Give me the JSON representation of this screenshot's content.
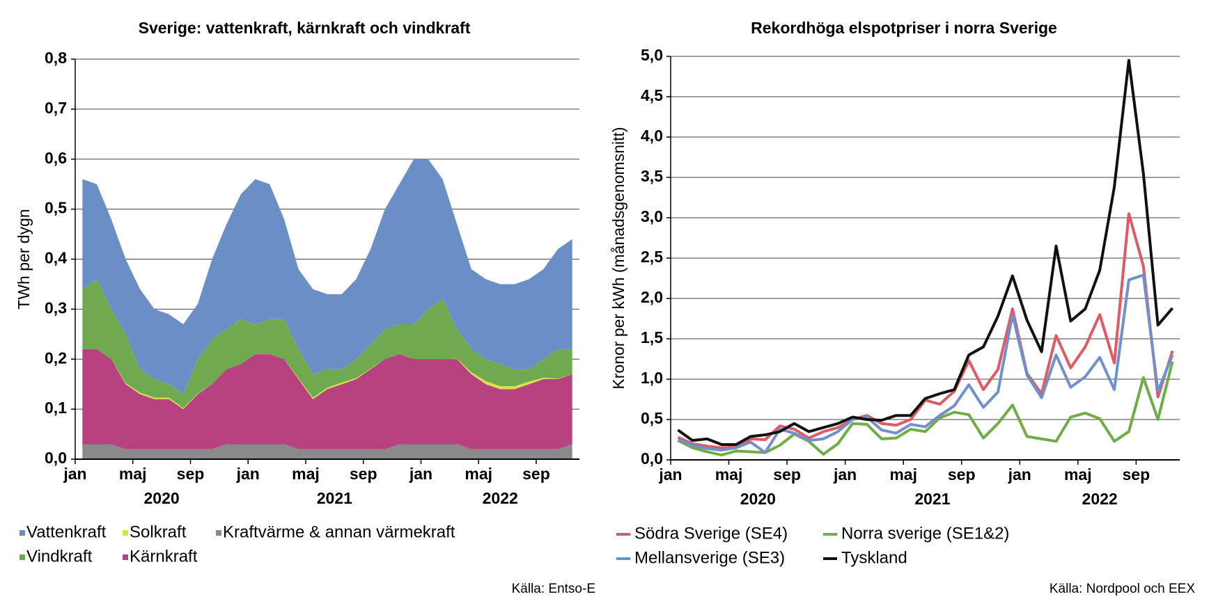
{
  "chart_data": [
    {
      "type": "area",
      "stacked": true,
      "title": "Sverige: vattenkraft, kärnkraft och vindkraft",
      "ylabel": "TWh per dygn",
      "source": "Källa: Entso-E",
      "x": [
        "2020-01",
        "2020-02",
        "2020-03",
        "2020-04",
        "2020-05",
        "2020-06",
        "2020-07",
        "2020-08",
        "2020-09",
        "2020-10",
        "2020-11",
        "2020-12",
        "2021-01",
        "2021-02",
        "2021-03",
        "2021-04",
        "2021-05",
        "2021-06",
        "2021-07",
        "2021-08",
        "2021-09",
        "2021-10",
        "2021-11",
        "2021-12",
        "2022-01",
        "2022-02",
        "2022-03",
        "2022-04",
        "2022-05",
        "2022-06",
        "2022-07",
        "2022-08",
        "2022-09",
        "2022-10",
        "2022-11"
      ],
      "series": [
        {
          "name": "Kraftvärme & annan värmekraft",
          "color": "#8a8a8a",
          "values": [
            0.03,
            0.03,
            0.03,
            0.02,
            0.02,
            0.02,
            0.02,
            0.02,
            0.02,
            0.02,
            0.03,
            0.03,
            0.03,
            0.03,
            0.03,
            0.02,
            0.02,
            0.02,
            0.02,
            0.02,
            0.02,
            0.02,
            0.03,
            0.03,
            0.03,
            0.03,
            0.03,
            0.02,
            0.02,
            0.02,
            0.02,
            0.02,
            0.02,
            0.02,
            0.03
          ]
        },
        {
          "name": "Kärnkraft",
          "color": "#b8417f",
          "values": [
            0.19,
            0.19,
            0.17,
            0.13,
            0.11,
            0.1,
            0.1,
            0.08,
            0.11,
            0.13,
            0.15,
            0.16,
            0.18,
            0.18,
            0.17,
            0.14,
            0.1,
            0.12,
            0.13,
            0.14,
            0.16,
            0.18,
            0.18,
            0.17,
            0.17,
            0.17,
            0.17,
            0.15,
            0.13,
            0.12,
            0.12,
            0.13,
            0.14,
            0.14,
            0.14
          ]
        },
        {
          "name": "Solkraft",
          "color": "#d8e24a",
          "values": [
            0,
            0,
            0,
            0.002,
            0.003,
            0.003,
            0.003,
            0.002,
            0.001,
            0,
            0,
            0,
            0,
            0,
            0,
            0.002,
            0.003,
            0.003,
            0.003,
            0.002,
            0.001,
            0,
            0,
            0,
            0,
            0,
            0.001,
            0.004,
            0.006,
            0.006,
            0.006,
            0.005,
            0.003,
            0.001,
            0
          ]
        },
        {
          "name": "Vindkraft",
          "color": "#70a94f",
          "values": [
            0.12,
            0.14,
            0.1,
            0.098,
            0.047,
            0.037,
            0.027,
            0.028,
            0.069,
            0.09,
            0.08,
            0.09,
            0.06,
            0.07,
            0.08,
            0.058,
            0.047,
            0.037,
            0.027,
            0.038,
            0.049,
            0.06,
            0.06,
            0.07,
            0.1,
            0.12,
            0.059,
            0.046,
            0.044,
            0.044,
            0.034,
            0.025,
            0.037,
            0.059,
            0.05
          ]
        },
        {
          "name": "Vattenkraft",
          "color": "#6a8fc7",
          "values": [
            0.22,
            0.19,
            0.18,
            0.15,
            0.16,
            0.14,
            0.14,
            0.14,
            0.11,
            0.16,
            0.21,
            0.25,
            0.29,
            0.27,
            0.2,
            0.16,
            0.17,
            0.15,
            0.15,
            0.16,
            0.19,
            0.24,
            0.28,
            0.33,
            0.3,
            0.24,
            0.21,
            0.16,
            0.16,
            0.16,
            0.17,
            0.18,
            0.18,
            0.2,
            0.22
          ]
        }
      ],
      "ylim": [
        0,
        0.8
      ],
      "yticks": [
        {
          "value": 0,
          "label": "0,0"
        },
        {
          "value": 0.1,
          "label": "0,1"
        },
        {
          "value": 0.2,
          "label": "0,2"
        },
        {
          "value": 0.3,
          "label": "0,3"
        },
        {
          "value": 0.4,
          "label": "0,4"
        },
        {
          "value": 0.5,
          "label": "0,5"
        },
        {
          "value": 0.6,
          "label": "0,6"
        },
        {
          "value": 0.7,
          "label": "0,7"
        },
        {
          "value": 0.8,
          "label": "0,8"
        }
      ],
      "xticks": [
        {
          "value": "2020-01",
          "label": "jan"
        },
        {
          "value": "2020-05",
          "label": "maj"
        },
        {
          "value": "2020-09",
          "label": "sep"
        },
        {
          "value": "2021-01",
          "label": "jan"
        },
        {
          "value": "2021-05",
          "label": "maj"
        },
        {
          "value": "2021-09",
          "label": "sep"
        },
        {
          "value": "2022-01",
          "label": "jan"
        },
        {
          "value": "2022-05",
          "label": "maj"
        },
        {
          "value": "2022-09",
          "label": "sep"
        }
      ],
      "year_labels": [
        "2020",
        "2021",
        "2022"
      ],
      "grid": true
    },
    {
      "type": "line",
      "title": "Rekordhöga elspotpriser i norra Sverige",
      "ylabel": "Kronor per kWh (månadsgenomsnitt)",
      "source": "Källa: Nordpool och EEX",
      "x": [
        "2020-01",
        "2020-02",
        "2020-03",
        "2020-04",
        "2020-05",
        "2020-06",
        "2020-07",
        "2020-08",
        "2020-09",
        "2020-10",
        "2020-11",
        "2020-12",
        "2021-01",
        "2021-02",
        "2021-03",
        "2021-04",
        "2021-05",
        "2021-06",
        "2021-07",
        "2021-08",
        "2021-09",
        "2021-10",
        "2021-11",
        "2021-12",
        "2022-01",
        "2022-02",
        "2022-03",
        "2022-04",
        "2022-05",
        "2022-06",
        "2022-07",
        "2022-08",
        "2022-09",
        "2022-10",
        "2022-11"
      ],
      "series": [
        {
          "name": "Södra Sverige (SE4)",
          "color": "#e05a66",
          "values": [
            0.28,
            0.2,
            0.17,
            0.15,
            0.16,
            0.26,
            0.25,
            0.42,
            0.38,
            0.27,
            0.35,
            0.4,
            0.5,
            0.55,
            0.45,
            0.43,
            0.5,
            0.74,
            0.69,
            0.85,
            1.23,
            0.87,
            1.12,
            1.87,
            1.07,
            0.82,
            1.54,
            1.14,
            1.4,
            1.8,
            1.2,
            3.05,
            2.4,
            0.78,
            1.35
          ]
        },
        {
          "name": "Norra sverige (SE1&2)",
          "color": "#70ad47",
          "values": [
            0.24,
            0.15,
            0.1,
            0.06,
            0.11,
            0.1,
            0.09,
            0.18,
            0.32,
            0.23,
            0.07,
            0.2,
            0.45,
            0.44,
            0.26,
            0.27,
            0.38,
            0.35,
            0.52,
            0.59,
            0.56,
            0.27,
            0.45,
            0.68,
            0.29,
            0.26,
            0.23,
            0.53,
            0.58,
            0.51,
            0.23,
            0.35,
            1.02,
            0.5,
            1.22
          ]
        },
        {
          "name": "Mellansverige (SE3)",
          "color": "#6f90cc",
          "values": [
            0.25,
            0.18,
            0.14,
            0.12,
            0.15,
            0.22,
            0.09,
            0.38,
            0.33,
            0.24,
            0.26,
            0.35,
            0.5,
            0.53,
            0.37,
            0.33,
            0.44,
            0.41,
            0.55,
            0.67,
            0.93,
            0.65,
            0.84,
            1.8,
            1.05,
            0.77,
            1.3,
            0.9,
            1.03,
            1.27,
            0.87,
            2.23,
            2.29,
            0.85,
            1.3
          ]
        },
        {
          "name": "Tyskland",
          "color": "#111111",
          "values": [
            0.37,
            0.24,
            0.26,
            0.19,
            0.19,
            0.29,
            0.31,
            0.35,
            0.45,
            0.35,
            0.4,
            0.45,
            0.53,
            0.5,
            0.49,
            0.55,
            0.55,
            0.76,
            0.82,
            0.87,
            1.3,
            1.4,
            1.78,
            2.28,
            1.73,
            1.34,
            2.65,
            1.72,
            1.87,
            2.35,
            3.38,
            4.95,
            3.55,
            1.67,
            1.88
          ]
        }
      ],
      "ylim": [
        0,
        5
      ],
      "yticks": [
        {
          "value": 0,
          "label": "0,0"
        },
        {
          "value": 0.5,
          "label": "0,5"
        },
        {
          "value": 1,
          "label": "1,0"
        },
        {
          "value": 1.5,
          "label": "1,5"
        },
        {
          "value": 2,
          "label": "2,0"
        },
        {
          "value": 2.5,
          "label": "2,5"
        },
        {
          "value": 3,
          "label": "3,0"
        },
        {
          "value": 3.5,
          "label": "3,5"
        },
        {
          "value": 4,
          "label": "4,0"
        },
        {
          "value": 4.5,
          "label": "4,5"
        },
        {
          "value": 5,
          "label": "5,0"
        }
      ],
      "xticks": [
        {
          "value": "2020-01",
          "label": "jan"
        },
        {
          "value": "2020-05",
          "label": "maj"
        },
        {
          "value": "2020-09",
          "label": "sep"
        },
        {
          "value": "2021-01",
          "label": "jan"
        },
        {
          "value": "2021-05",
          "label": "maj"
        },
        {
          "value": "2021-09",
          "label": "sep"
        },
        {
          "value": "2022-01",
          "label": "jan"
        },
        {
          "value": "2022-05",
          "label": "maj"
        },
        {
          "value": "2022-09",
          "label": "sep"
        }
      ],
      "year_labels": [
        "2020",
        "2021",
        "2022"
      ],
      "grid": true
    }
  ]
}
